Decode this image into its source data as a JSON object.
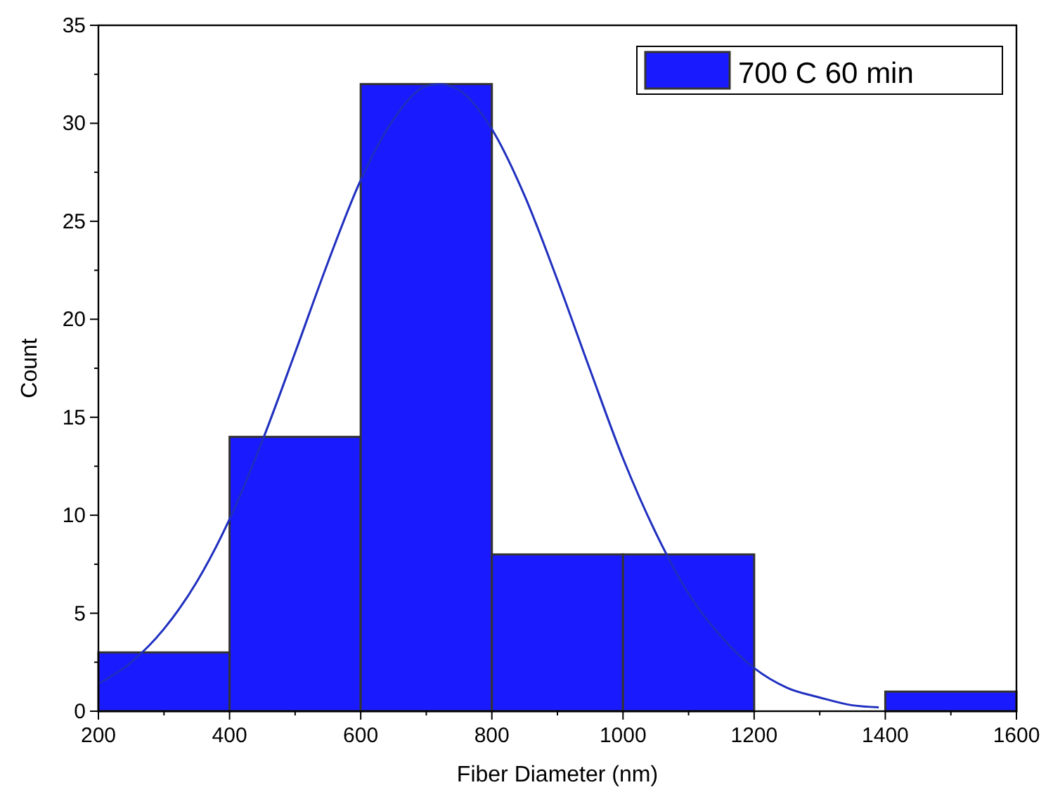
{
  "chart_data": {
    "type": "histogram",
    "xlabel": "Fiber Diameter (nm)",
    "ylabel": "Count",
    "bins": [
      200,
      400,
      600,
      800,
      1000,
      1200,
      1400,
      1600
    ],
    "series": [
      {
        "name": "700 C 60 min",
        "color": "#1a1aff",
        "values": [
          3,
          14,
          32,
          8,
          8,
          0,
          1
        ]
      },
      {
        "type": "line",
        "color": "#1f2fbf",
        "x": [
          200,
          250,
          300,
          350,
          400,
          450,
          500,
          550,
          600,
          650,
          700,
          720,
          750,
          800,
          850,
          900,
          950,
          1000,
          1050,
          1100,
          1150,
          1200,
          1250,
          1300,
          1350,
          1390
        ],
        "values": [
          1.4,
          2.5,
          4.2,
          6.6,
          9.8,
          13.8,
          18.3,
          22.9,
          27.1,
          30.2,
          31.9,
          32,
          31.7,
          29.7,
          26.3,
          22,
          17.4,
          12.9,
          9.1,
          6,
          3.8,
          2.2,
          1.2,
          0.7,
          0.3,
          0.2
        ]
      }
    ],
    "xlim": [
      200,
      1600
    ],
    "xticks": [
      200,
      400,
      600,
      800,
      1000,
      1200,
      1400,
      1600
    ],
    "ylim": [
      0,
      35
    ],
    "yticks": [
      0,
      5,
      10,
      15,
      20,
      25,
      30,
      35
    ],
    "grid": false,
    "legend": "top right"
  }
}
